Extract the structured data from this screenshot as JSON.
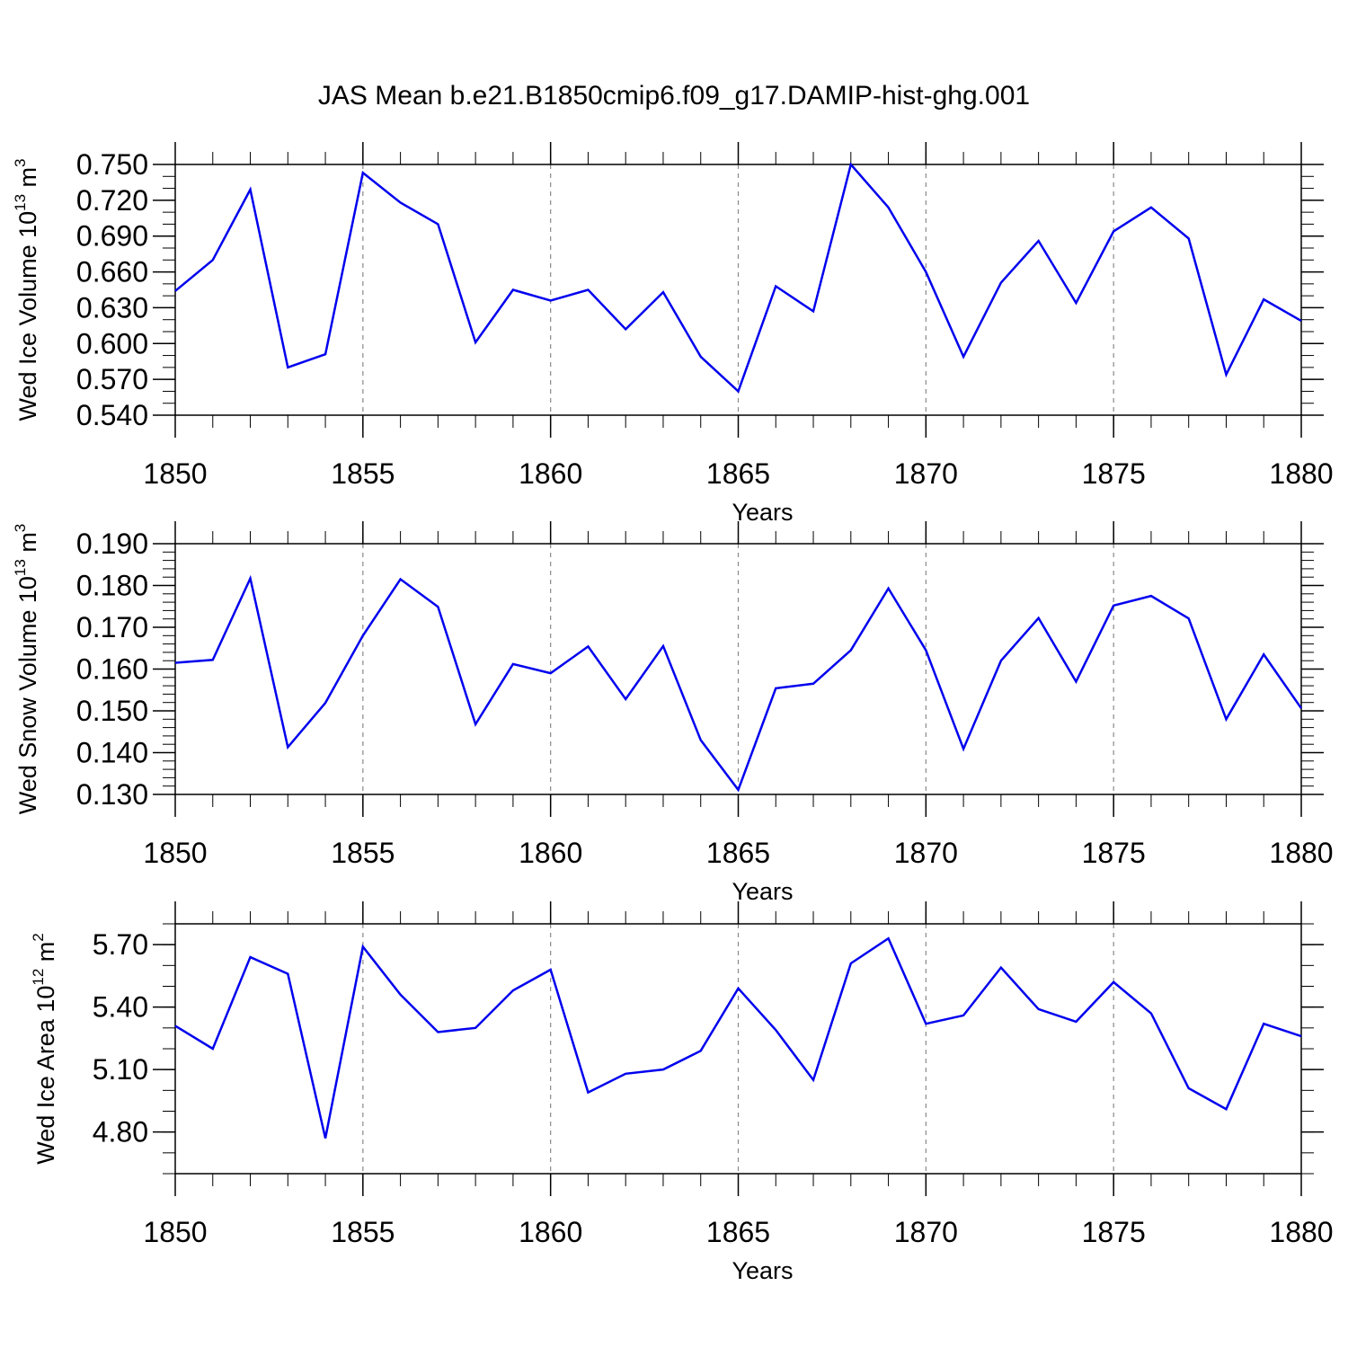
{
  "title": "JAS Mean b.e21.B1850cmip6.f09_g17.DAMIP-hist-ghg.001",
  "colors": {
    "line": "#0000ee",
    "axis": "#000000",
    "grid": "#888888"
  },
  "chart_data": [
    {
      "type": "line",
      "name": "ice-volume",
      "ylabel": {
        "text": "Wed Ice Volume 10",
        "exp": "13",
        "unit": " m",
        "unit_exp": "3"
      },
      "xlabel": "Years",
      "xlim": [
        1850,
        1880
      ],
      "ylim": [
        0.54,
        0.75
      ],
      "yticks": [
        "0.540",
        "0.570",
        "0.600",
        "0.630",
        "0.660",
        "0.690",
        "0.720",
        "0.750"
      ],
      "yminor_step": 0.01,
      "xticks": [
        "1850",
        "1855",
        "1860",
        "1865",
        "1870",
        "1875",
        "1880"
      ],
      "x": [
        1850,
        1851,
        1852,
        1853,
        1854,
        1855,
        1856,
        1857,
        1858,
        1859,
        1860,
        1861,
        1862,
        1863,
        1864,
        1865,
        1866,
        1867,
        1868,
        1869,
        1870,
        1871,
        1872,
        1873,
        1874,
        1875,
        1876,
        1877,
        1878,
        1879,
        1880
      ],
      "values": [
        0.644,
        0.67,
        0.729,
        0.58,
        0.591,
        0.743,
        0.718,
        0.7,
        0.601,
        0.645,
        0.636,
        0.645,
        0.612,
        0.643,
        0.589,
        0.56,
        0.648,
        0.627,
        0.75,
        0.714,
        0.66,
        0.589,
        0.651,
        0.686,
        0.634,
        0.694,
        0.714,
        0.688,
        0.574,
        0.637,
        0.619
      ]
    },
    {
      "type": "line",
      "name": "snow-volume",
      "ylabel": {
        "text": "Wed Snow Volume 10",
        "exp": "13",
        "unit": " m",
        "unit_exp": "3"
      },
      "xlabel": "Years",
      "xlim": [
        1850,
        1880
      ],
      "ylim": [
        0.13,
        0.19
      ],
      "yticks": [
        "0.130",
        "0.140",
        "0.150",
        "0.160",
        "0.170",
        "0.180",
        "0.190"
      ],
      "yminor_step": 0.002,
      "xticks": [
        "1850",
        "1855",
        "1860",
        "1865",
        "1870",
        "1875",
        "1880"
      ],
      "x": [
        1850,
        1851,
        1852,
        1853,
        1854,
        1855,
        1856,
        1857,
        1858,
        1859,
        1860,
        1861,
        1862,
        1863,
        1864,
        1865,
        1866,
        1867,
        1868,
        1869,
        1870,
        1871,
        1872,
        1873,
        1874,
        1875,
        1876,
        1877,
        1878,
        1879,
        1880
      ],
      "values": [
        0.1615,
        0.1622,
        0.1817,
        0.1413,
        0.1519,
        0.168,
        0.1815,
        0.1749,
        0.1468,
        0.1612,
        0.159,
        0.1654,
        0.1528,
        0.1655,
        0.143,
        0.1311,
        0.1554,
        0.1565,
        0.1645,
        0.1793,
        0.1645,
        0.1409,
        0.162,
        0.1722,
        0.157,
        0.1752,
        0.1775,
        0.1721,
        0.148,
        0.1635,
        0.1506
      ]
    },
    {
      "type": "line",
      "name": "ice-area",
      "ylabel": {
        "text": "Wed Ice Area 10",
        "exp": "12",
        "unit": " m",
        "unit_exp": "2"
      },
      "xlabel": "Years",
      "xlim": [
        1850,
        1880
      ],
      "ylim": [
        4.6,
        5.8
      ],
      "yticks": [
        "4.80",
        "5.10",
        "5.40",
        "5.70"
      ],
      "yminor_step": 0.1,
      "xticks": [
        "1850",
        "1855",
        "1860",
        "1865",
        "1870",
        "1875",
        "1880"
      ],
      "x": [
        1850,
        1851,
        1852,
        1853,
        1854,
        1855,
        1856,
        1857,
        1858,
        1859,
        1860,
        1861,
        1862,
        1863,
        1864,
        1865,
        1866,
        1867,
        1868,
        1869,
        1870,
        1871,
        1872,
        1873,
        1874,
        1875,
        1876,
        1877,
        1878,
        1879,
        1880
      ],
      "values": [
        5.31,
        5.2,
        5.64,
        5.56,
        4.77,
        5.69,
        5.46,
        5.28,
        5.3,
        5.48,
        5.58,
        4.99,
        5.08,
        5.1,
        5.19,
        5.49,
        5.29,
        5.05,
        5.61,
        5.73,
        5.32,
        5.36,
        5.59,
        5.39,
        5.33,
        5.52,
        5.37,
        5.01,
        4.91,
        5.32,
        5.26
      ]
    }
  ]
}
